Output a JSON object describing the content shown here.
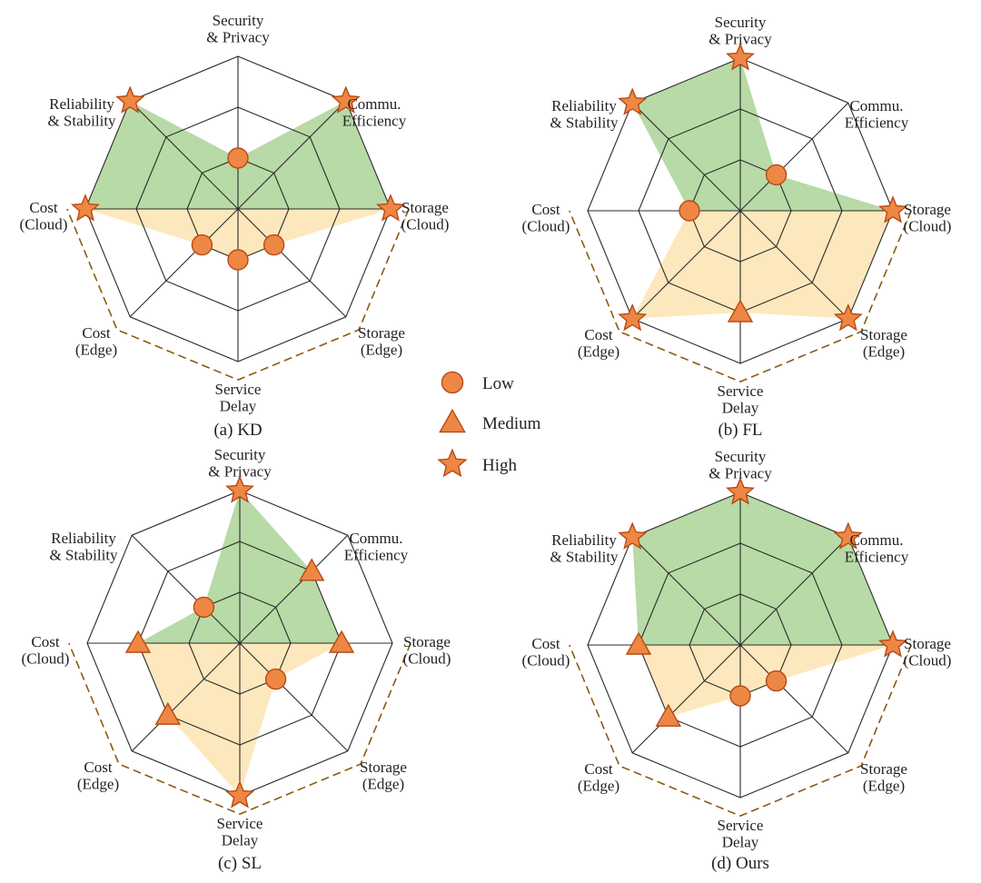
{
  "chart_data": [
    {
      "type": "radar",
      "id": "kd",
      "caption": "(a) KD",
      "axes": [
        "Security & Privacy",
        "Commu. Efficiency",
        "Storage (Cloud)",
        "Storage (Edge)",
        "Service Delay",
        "Cost (Edge)",
        "Cost (Cloud)",
        "Reliability & Stability"
      ],
      "levels": [
        "Low",
        "Medium",
        "High"
      ],
      "values": [
        1,
        3,
        3,
        1,
        1,
        1,
        3,
        3
      ]
    },
    {
      "type": "radar",
      "id": "fl",
      "caption": "(b) FL",
      "axes": [
        "Security & Privacy",
        "Commu. Efficiency",
        "Storage (Cloud)",
        "Storage (Edge)",
        "Service Delay",
        "Cost (Edge)",
        "Cost (Cloud)",
        "Reliability & Stability"
      ],
      "levels": [
        "Low",
        "Medium",
        "High"
      ],
      "values": [
        3,
        1,
        3,
        3,
        2,
        3,
        1,
        3
      ]
    },
    {
      "type": "radar",
      "id": "sl",
      "caption": "(c) SL",
      "axes": [
        "Security & Privacy",
        "Commu. Efficiency",
        "Storage (Cloud)",
        "Storage (Edge)",
        "Service Delay",
        "Cost (Edge)",
        "Cost (Cloud)",
        "Reliability & Stability"
      ],
      "levels": [
        "Low",
        "Medium",
        "High"
      ],
      "values": [
        3,
        2,
        2,
        1,
        3,
        2,
        2,
        1
      ]
    },
    {
      "type": "radar",
      "id": "ours",
      "caption": "(d) Ours",
      "axes": [
        "Security & Privacy",
        "Commu. Efficiency",
        "Storage (Cloud)",
        "Storage (Edge)",
        "Service Delay",
        "Cost (Edge)",
        "Cost (Cloud)",
        "Reliability & Stability"
      ],
      "levels": [
        "Low",
        "Medium",
        "High"
      ],
      "values": [
        3,
        3,
        3,
        1,
        1,
        2,
        2,
        3
      ]
    }
  ],
  "axis_labels": [
    [
      "Security",
      "& Privacy"
    ],
    [
      "Commu.",
      "Efficiency"
    ],
    [
      "Storage",
      "(Cloud)"
    ],
    [
      "Storage",
      "(Edge)"
    ],
    [
      "Service",
      "Delay"
    ],
    [
      "Cost",
      "(Edge)"
    ],
    [
      "Cost",
      "(Cloud)"
    ],
    [
      "Reliability",
      "& Stability"
    ]
  ],
  "legend": [
    {
      "marker": "circle",
      "label": "Low"
    },
    {
      "marker": "triangle",
      "label": "Medium"
    },
    {
      "marker": "star",
      "label": "High"
    }
  ],
  "colors": {
    "marker_fill": "#ee8744",
    "marker_stroke": "#b84a14",
    "upper_fill": "#9ccc84",
    "lower_fill": "#fde4b2",
    "grid": "#2a2a2a",
    "dash": "#8a5a12"
  }
}
